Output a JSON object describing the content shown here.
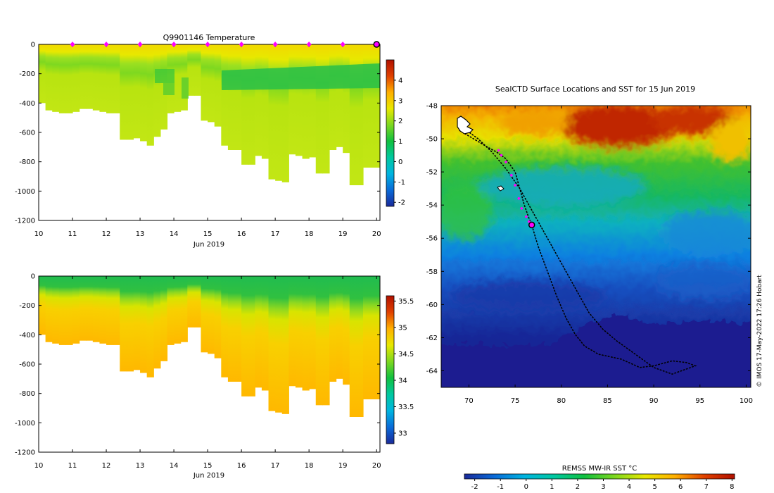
{
  "colors": {
    "temp_ramp": [
      "#1a2a9a",
      "#0a6ad8",
      "#00b4e0",
      "#00c8a0",
      "#10c040",
      "#7ed820",
      "#e8e800",
      "#ffb000",
      "#e04000",
      "#b01000"
    ],
    "frame": "#000000",
    "marker": "#ff00ff"
  },
  "icons": {
    "profile_marker": "magenta-diamond-marker",
    "current_position": "magenta-circle-marker"
  },
  "chart_data": [
    {
      "type": "heatmap",
      "name": "temperature-section",
      "title": "Q9901146  Temperature",
      "xlabel": "Jun 2019",
      "ylabel": "",
      "xlim": [
        10,
        20.1
      ],
      "ylim": [
        -1200,
        0
      ],
      "x_ticks": [
        "10",
        "11",
        "12",
        "13",
        "14",
        "15",
        "16",
        "17",
        "18",
        "19",
        "20"
      ],
      "y_ticks": [
        "0",
        "-200",
        "-400",
        "-600",
        "-800",
        "-1000",
        "-1200"
      ],
      "profile_marker_days": [
        11,
        12,
        13,
        14,
        15,
        16,
        17,
        18,
        19
      ],
      "current_marker_day": 20,
      "clim": [
        -2.2,
        5
      ],
      "colorbar_ticks": [
        "4",
        "3",
        "2",
        "1",
        "0",
        "-1",
        "-2"
      ],
      "profile_depth_days": [
        10.0,
        10.2,
        10.4,
        10.6,
        10.8,
        11.0,
        11.2,
        11.4,
        11.6,
        11.8,
        12.0,
        12.2,
        12.4,
        12.6,
        12.8,
        13.0,
        13.2,
        13.4,
        13.6,
        13.8,
        14.0,
        14.2,
        14.4,
        14.6,
        14.8,
        15.0,
        15.2,
        15.4,
        15.6,
        15.8,
        16.0,
        16.2,
        16.4,
        16.6,
        16.8,
        17.0,
        17.2,
        17.4,
        17.6,
        17.8,
        18.0,
        18.2,
        18.4,
        18.6,
        18.8,
        19.0,
        19.2,
        19.4,
        19.6,
        19.8,
        20.0
      ],
      "profile_max_depth_m": [
        -400,
        -450,
        -460,
        -470,
        -470,
        -460,
        -440,
        -440,
        -450,
        -460,
        -470,
        -470,
        -650,
        -650,
        -640,
        -660,
        -690,
        -630,
        -580,
        -470,
        -460,
        -450,
        -350,
        -350,
        -520,
        -530,
        -560,
        -690,
        -720,
        -720,
        -820,
        -820,
        -760,
        -780,
        -920,
        -930,
        -940,
        -750,
        -760,
        -780,
        -770,
        -880,
        -880,
        -720,
        -700,
        -740,
        -960,
        -960,
        -840,
        -840,
        -840
      ],
      "summary": "Warm (3-4) surface layer 0-200 m, cooler band near 1-2 degC around 150-300 m after 15 Jun, about 2 degC below 400 m"
    },
    {
      "type": "heatmap",
      "name": "salinity-section",
      "title": "",
      "xlabel": "Jun 2019",
      "ylabel": "",
      "xlim": [
        10,
        20.1
      ],
      "ylim": [
        -1200,
        0
      ],
      "x_ticks": [
        "10",
        "11",
        "12",
        "13",
        "14",
        "15",
        "16",
        "17",
        "18",
        "19",
        "20"
      ],
      "y_ticks": [
        "0",
        "-200",
        "-400",
        "-600",
        "-800",
        "-1000",
        "-1200"
      ],
      "clim": [
        32.8,
        35.6
      ],
      "colorbar_ticks": [
        "35.5",
        "35",
        "34.5",
        "34",
        "33.5",
        "33"
      ],
      "summary": "Salinity about 33.9-34.1 near surface increasing to about 34.7-34.8 at depth"
    },
    {
      "type": "heatmap",
      "name": "sst-map",
      "title": "SealCTD Surface Locations and SST for 15 Jun 2019",
      "xlabel": "",
      "ylabel": "",
      "xlim": [
        67,
        100.5
      ],
      "ylim": [
        -65,
        -48
      ],
      "x_ticks": [
        "70",
        "75",
        "80",
        "85",
        "90",
        "95",
        "100"
      ],
      "y_ticks": [
        "-48",
        "-50",
        "-52",
        "-54",
        "-56",
        "-58",
        "-60",
        "-62",
        "-64"
      ],
      "track_lon": [
        69.0,
        70.5,
        72.0,
        73.0,
        74.0,
        75.0,
        75.5,
        76.0,
        76.5,
        76.8,
        77.5,
        78.5,
        79.5,
        80.5,
        81.5,
        82.5,
        84.0,
        86.5,
        88.5,
        90.0,
        92.0,
        93.5,
        94.5,
        92.0,
        90.0,
        88.0,
        86.0,
        84.5,
        83.0,
        81.5,
        80.0,
        78.5,
        77.0,
        75.5,
        74.0,
        72.5,
        71.0,
        70.0,
        69.5
      ],
      "track_lat": [
        -49.5,
        -50.0,
        -50.5,
        -50.8,
        -51.2,
        -52.0,
        -53.0,
        -54.0,
        -54.8,
        -55.2,
        -56.5,
        -58.0,
        -59.5,
        -60.8,
        -61.8,
        -62.5,
        -63.0,
        -63.3,
        -63.8,
        -63.7,
        -63.4,
        -63.5,
        -63.7,
        -64.2,
        -63.8,
        -63.0,
        -62.2,
        -61.5,
        -60.5,
        -59.0,
        -57.5,
        -56.0,
        -54.5,
        -53.0,
        -51.8,
        -50.8,
        -50.0,
        -49.6,
        -49.3
      ],
      "profile_lon": [
        73.2,
        73.5,
        74.0,
        74.6,
        75.0,
        75.4,
        75.7,
        76.2,
        76.5
      ],
      "profile_lat": [
        -50.7,
        -51.0,
        -51.4,
        -52.2,
        -52.8,
        -53.6,
        -54.2,
        -54.7,
        -55.0
      ],
      "current_lon": 76.8,
      "current_lat": -55.2,
      "colorbar": {
        "label": "REMSS MW-IR SST °C",
        "ticks": [
          "-2",
          "-1",
          "0",
          "1",
          "2",
          "3",
          "4",
          "5",
          "6",
          "7",
          "8"
        ],
        "clim": [
          -2.4,
          8.1
        ]
      },
      "credit": "© IMOS 17-May-2022 17:26 Hobart"
    }
  ]
}
